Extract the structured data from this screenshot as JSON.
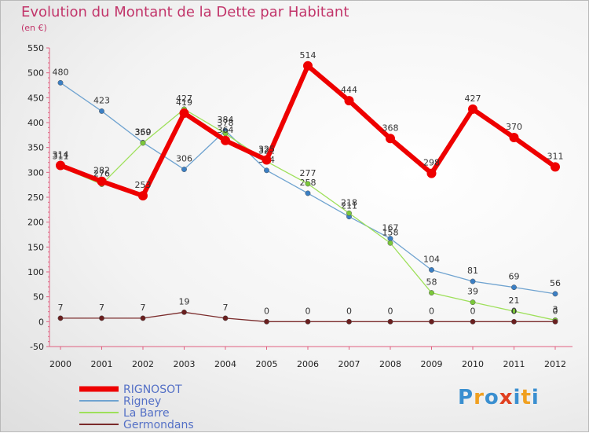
{
  "title": "Evolution du Montant de la Dette par Habitant",
  "subtitle": "(en €)",
  "logo": {
    "text": "Proxiti",
    "colors": [
      "#3a8fd0",
      "#f0a020",
      "#3a8fd0",
      "#e04020",
      "#3a8fd0",
      "#f0a020",
      "#3a8fd0"
    ]
  },
  "chart_data": {
    "type": "line",
    "x": [
      "2000",
      "2001",
      "2002",
      "2003",
      "2004",
      "2005",
      "2006",
      "2007",
      "2008",
      "2009",
      "2010",
      "2011",
      "2012"
    ],
    "ylim": [
      -50,
      550
    ],
    "yticks": [
      -50,
      0,
      50,
      100,
      150,
      200,
      250,
      300,
      350,
      400,
      450,
      500,
      550
    ],
    "grid": false,
    "legend_position": "bottom-left",
    "series": [
      {
        "name": "Rigney",
        "color": "#6fa3d0",
        "marker": "#3b7fc4",
        "values": [
          480,
          423,
          360,
          306,
          384,
          304,
          258,
          211,
          167,
          104,
          81,
          69,
          56
        ]
      },
      {
        "name": "La Barre",
        "color": "#9ee05a",
        "marker": "#7bc83a",
        "values": [
          311,
          276,
          359,
          427,
          378,
          322,
          277,
          218,
          158,
          58,
          39,
          21,
          3
        ]
      },
      {
        "name": "Germondans",
        "color": "#7a2a2a",
        "marker": "#6a1f1f",
        "values": [
          7,
          7,
          7,
          19,
          7,
          0,
          0,
          0,
          0,
          0,
          0,
          0,
          0
        ]
      },
      {
        "name": "RIGNOSOT",
        "color": "#ee0000",
        "marker": "#ee0000",
        "values": [
          314,
          282,
          253,
          419,
          364,
          325,
          514,
          444,
          368,
          298,
          427,
          370,
          311
        ]
      }
    ],
    "legend_order": [
      "RIGNOSOT",
      "Rigney",
      "La Barre",
      "Germondans"
    ]
  }
}
